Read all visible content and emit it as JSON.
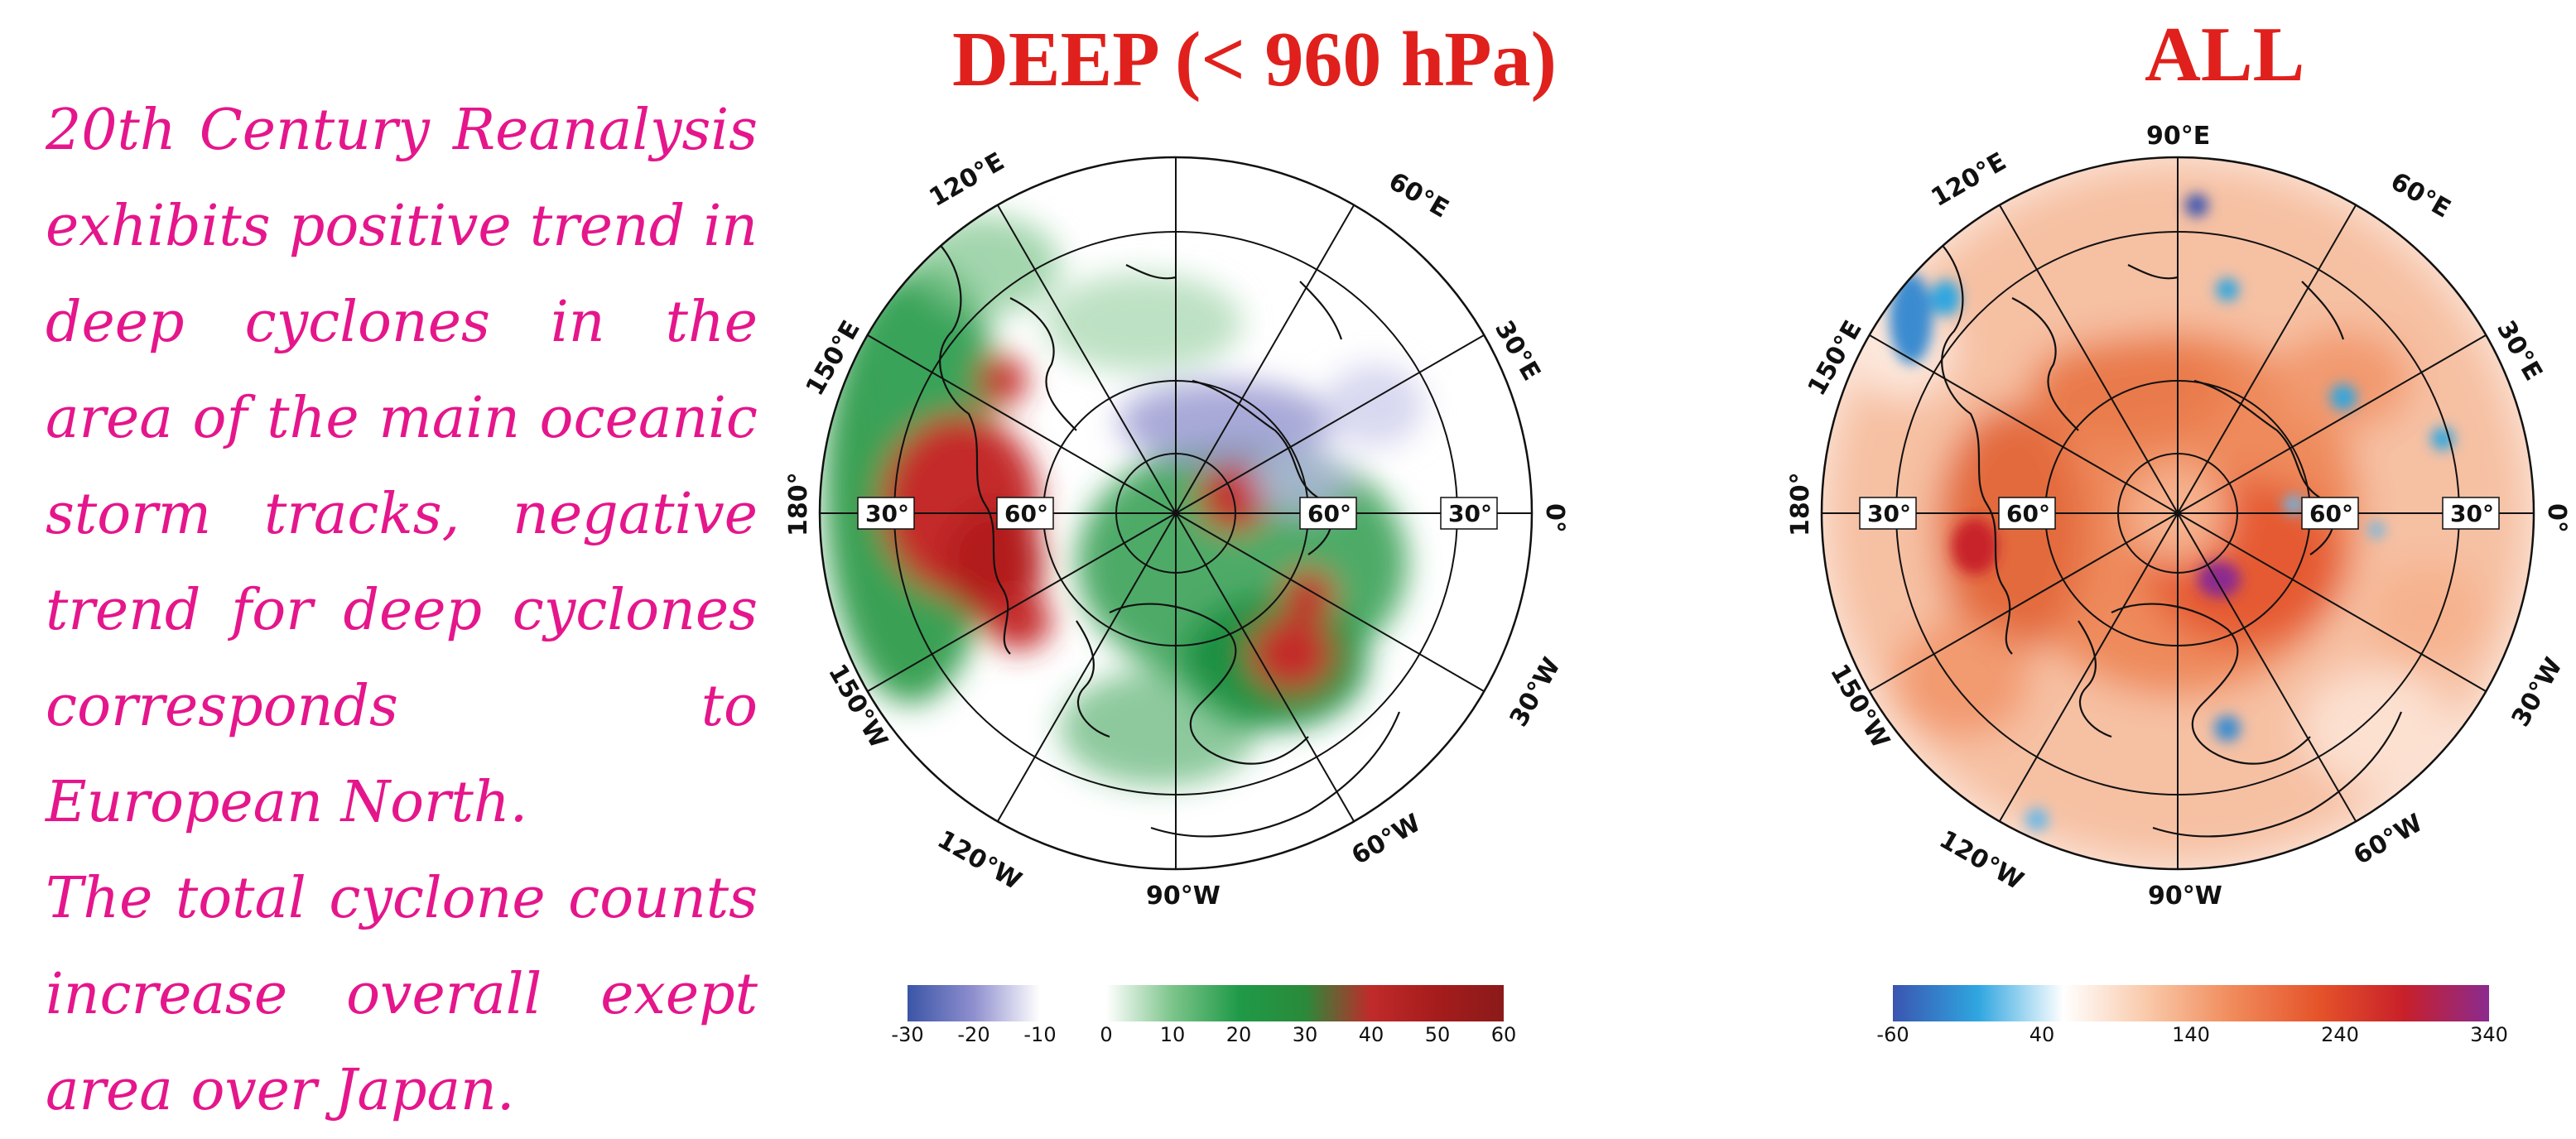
{
  "description_text": {
    "paragraph1": "20th Century Reanalysis exhibits positive trend in deep cyclones in the area of the main oceanic storm tracks, negative trend for deep cyclones corresponds to European North.",
    "paragraph2": "The total cyclone counts increase overall exept area over Japan."
  },
  "maps": {
    "deep": {
      "title": "DEEP  (< 960 hPa)",
      "lon_labels": [
        "60°E",
        "30°E",
        "0°",
        "30°W",
        "60°W",
        "90°W",
        "120°W",
        "150°W",
        "180°",
        "150°E",
        "120°E"
      ],
      "lat_labels": [
        "30°",
        "60°",
        "60°",
        "30°"
      ],
      "colorbar_ticks": [
        "-30",
        "-20",
        "-10",
        "0",
        "10",
        "20",
        "30",
        "40",
        "50",
        "60"
      ],
      "colors": [
        "#3b55a6",
        "#8f8fcf",
        "#ffffff",
        "#ffffff",
        "#7cc48a",
        "#1f9a48",
        "#2a8a3a",
        "#c02a2a",
        "#a51c1c",
        "#8b1a1a"
      ]
    },
    "all": {
      "title": "ALL",
      "lon_labels": [
        "90°E",
        "60°E",
        "30°E",
        "0°",
        "30°W",
        "60°W",
        "90°W",
        "120°W",
        "150°W",
        "180°",
        "150°E",
        "120°E"
      ],
      "lat_labels": [
        "30°",
        "60°",
        "60°",
        "30°"
      ],
      "colorbar_ticks": [
        "-60",
        "40",
        "140",
        "240",
        "340"
      ],
      "colors": [
        "#3a55b0",
        "#2fa6e0",
        "#ffffff",
        "#f9c8a8",
        "#f08a5a",
        "#e5532a",
        "#c8202a",
        "#8b2a8f"
      ]
    }
  }
}
